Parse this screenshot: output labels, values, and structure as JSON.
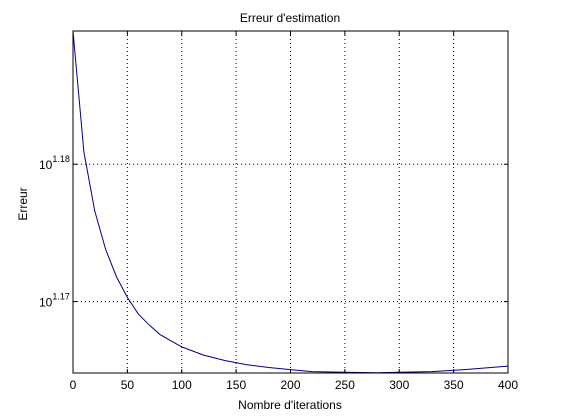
{
  "chart_data": {
    "type": "line",
    "title": "Erreur d'estimation",
    "xlabel": "Nombre d'iterations",
    "ylabel": "Erreur",
    "xlim": [
      0,
      400
    ],
    "ylim_log10": [
      1.1648,
      1.1897
    ],
    "y_scale": "log10",
    "grid": true,
    "x_ticks": [
      {
        "value": 0,
        "label": "0"
      },
      {
        "value": 50,
        "label": "50"
      },
      {
        "value": 100,
        "label": "100"
      },
      {
        "value": 150,
        "label": "150"
      },
      {
        "value": 200,
        "label": "200"
      },
      {
        "value": 250,
        "label": "250"
      },
      {
        "value": 300,
        "label": "300"
      },
      {
        "value": 350,
        "label": "350"
      },
      {
        "value": 400,
        "label": "400"
      }
    ],
    "y_ticks": [
      {
        "log10": 1.17,
        "base": "10",
        "exponent": "1.17"
      },
      {
        "log10": 1.18,
        "base": "10",
        "exponent": "1.18"
      }
    ],
    "series": [
      {
        "color": "#00008b",
        "points": [
          [
            0,
            1.1897
          ],
          [
            10,
            1.1809
          ],
          [
            20,
            1.1766
          ],
          [
            30,
            1.1738
          ],
          [
            40,
            1.1718
          ],
          [
            50,
            1.1703
          ],
          [
            60,
            1.1691
          ],
          [
            70,
            1.1683
          ],
          [
            80,
            1.1676
          ],
          [
            100,
            1.1667
          ],
          [
            120,
            1.1661
          ],
          [
            140,
            1.1657
          ],
          [
            160,
            1.1654
          ],
          [
            180,
            1.1652
          ],
          [
            200,
            1.16505
          ],
          [
            220,
            1.1649
          ],
          [
            250,
            1.16485
          ],
          [
            280,
            1.16482
          ],
          [
            300,
            1.16485
          ],
          [
            330,
            1.1649
          ],
          [
            360,
            1.16505
          ],
          [
            400,
            1.1653
          ]
        ]
      }
    ]
  }
}
